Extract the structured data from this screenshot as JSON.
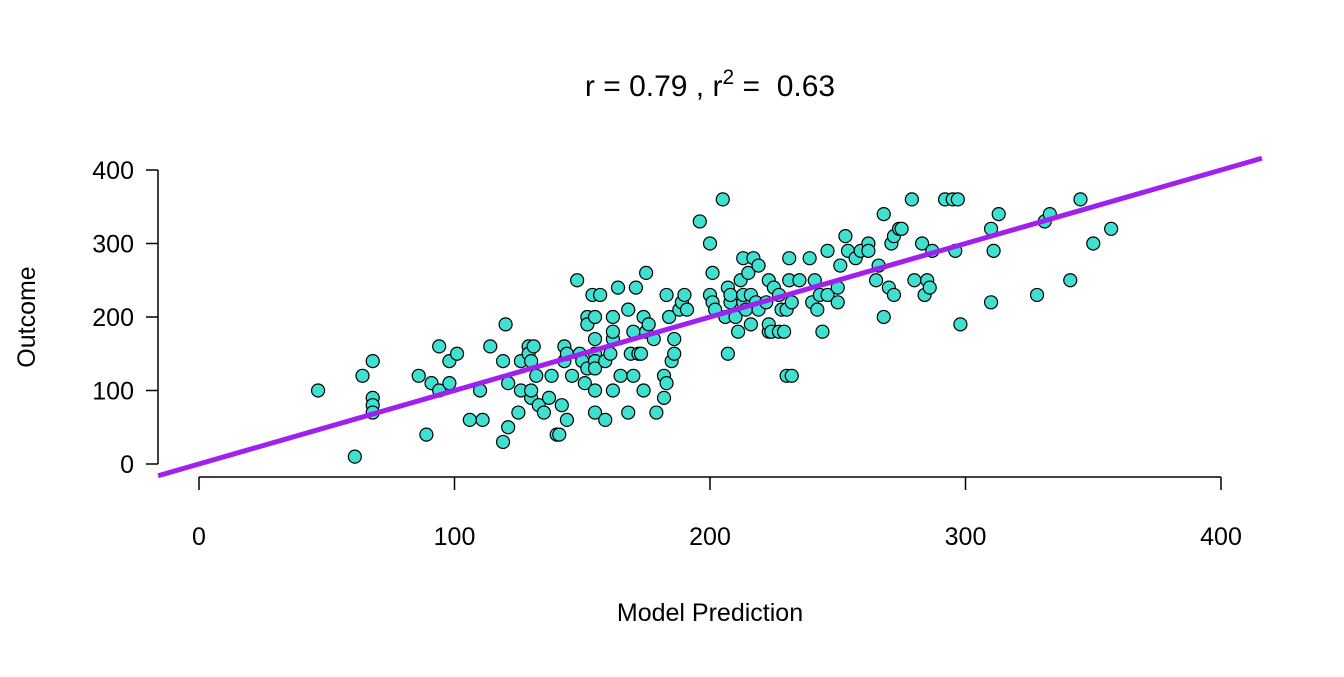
{
  "chart_data": {
    "type": "scatter",
    "title": "r = 0.79 , r",
    "title_sup": "2",
    "title_tail": " =  0.63",
    "xlabel": "Model Prediction",
    "ylabel": "Outcome",
    "xlim": [
      -16,
      416
    ],
    "ylim": [
      -12,
      413
    ],
    "xticks": [
      0,
      100,
      200,
      300,
      400
    ],
    "yticks": [
      0,
      100,
      200,
      300,
      400
    ],
    "xtick_labels": [
      "0",
      "100",
      "200",
      "300",
      "400"
    ],
    "ytick_labels": [
      "0",
      "100",
      "200",
      "300",
      "400"
    ],
    "grid": false,
    "point_color": "#40E0D0",
    "line_color": "#A020F0",
    "fit_line": {
      "slope": 1,
      "intercept": 0
    },
    "points": [
      [
        46.6,
        100
      ],
      [
        61,
        10
      ],
      [
        64,
        120
      ],
      [
        68,
        140
      ],
      [
        68,
        90
      ],
      [
        68,
        80
      ],
      [
        68,
        70
      ],
      [
        86,
        120
      ],
      [
        91,
        110
      ],
      [
        89,
        40
      ],
      [
        94,
        160
      ],
      [
        94,
        100
      ],
      [
        98,
        140
      ],
      [
        98,
        110
      ],
      [
        101,
        150
      ],
      [
        106,
        60
      ],
      [
        110,
        100
      ],
      [
        111,
        60
      ],
      [
        114,
        160
      ],
      [
        119,
        140
      ],
      [
        119,
        30
      ],
      [
        120,
        190
      ],
      [
        121,
        110
      ],
      [
        121,
        50
      ],
      [
        125,
        70
      ],
      [
        126,
        140
      ],
      [
        126,
        100
      ],
      [
        129,
        160
      ],
      [
        129,
        150
      ],
      [
        130,
        140
      ],
      [
        130,
        90
      ],
      [
        130,
        100
      ],
      [
        131,
        160
      ],
      [
        132,
        120
      ],
      [
        133,
        80
      ],
      [
        135,
        70
      ],
      [
        137,
        90
      ],
      [
        138,
        120
      ],
      [
        140,
        40
      ],
      [
        141,
        40
      ],
      [
        142,
        80
      ],
      [
        143,
        160
      ],
      [
        143,
        140
      ],
      [
        144,
        60
      ],
      [
        144,
        150
      ],
      [
        146,
        120
      ],
      [
        148,
        250
      ],
      [
        149,
        150
      ],
      [
        150,
        140
      ],
      [
        151,
        110
      ],
      [
        152,
        130
      ],
      [
        152,
        200
      ],
      [
        152,
        190
      ],
      [
        154,
        230
      ],
      [
        155,
        170
      ],
      [
        155,
        200
      ],
      [
        155,
        150
      ],
      [
        155,
        140
      ],
      [
        155,
        130
      ],
      [
        155,
        100
      ],
      [
        155,
        70
      ],
      [
        157,
        230
      ],
      [
        159,
        140
      ],
      [
        159,
        60
      ],
      [
        161,
        150
      ],
      [
        162,
        170
      ],
      [
        162,
        100
      ],
      [
        162,
        200
      ],
      [
        162,
        180
      ],
      [
        164,
        240
      ],
      [
        165,
        120
      ],
      [
        168,
        70
      ],
      [
        168,
        210
      ],
      [
        170,
        120
      ],
      [
        169,
        150
      ],
      [
        170,
        180
      ],
      [
        171,
        240
      ],
      [
        172,
        150
      ],
      [
        173,
        150
      ],
      [
        174,
        100
      ],
      [
        174,
        200
      ],
      [
        175,
        260
      ],
      [
        175,
        180
      ],
      [
        176,
        190
      ],
      [
        178,
        170
      ],
      [
        179,
        70
      ],
      [
        182,
        120
      ],
      [
        182,
        90
      ],
      [
        183,
        230
      ],
      [
        183,
        110
      ],
      [
        184,
        200
      ],
      [
        185,
        140
      ],
      [
        186,
        170
      ],
      [
        186,
        150
      ],
      [
        188,
        210
      ],
      [
        189,
        220
      ],
      [
        190,
        230
      ],
      [
        191,
        210
      ],
      [
        196,
        330
      ],
      [
        200,
        300
      ],
      [
        201,
        260
      ],
      [
        200,
        230
      ],
      [
        201,
        220
      ],
      [
        202,
        210
      ],
      [
        205,
        360
      ],
      [
        206,
        200
      ],
      [
        207,
        150
      ],
      [
        207,
        240
      ],
      [
        208,
        220
      ],
      [
        208,
        230
      ],
      [
        210,
        200
      ],
      [
        211,
        180
      ],
      [
        212,
        250
      ],
      [
        213,
        220
      ],
      [
        213,
        280
      ],
      [
        213,
        230
      ],
      [
        214,
        210
      ],
      [
        215,
        260
      ],
      [
        216,
        230
      ],
      [
        216,
        190
      ],
      [
        217,
        280
      ],
      [
        218,
        220
      ],
      [
        219,
        270
      ],
      [
        219,
        210
      ],
      [
        222,
        220
      ],
      [
        223,
        180
      ],
      [
        223,
        190
      ],
      [
        223,
        250
      ],
      [
        224,
        180
      ],
      [
        225,
        240
      ],
      [
        227,
        230
      ],
      [
        227,
        180
      ],
      [
        228,
        210
      ],
      [
        229,
        180
      ],
      [
        230,
        120
      ],
      [
        230,
        210
      ],
      [
        231,
        250
      ],
      [
        232,
        220
      ],
      [
        231,
        280
      ],
      [
        232,
        120
      ],
      [
        235,
        250
      ],
      [
        239,
        280
      ],
      [
        240,
        220
      ],
      [
        241,
        250
      ],
      [
        242,
        210
      ],
      [
        243,
        230
      ],
      [
        244,
        180
      ],
      [
        246,
        230
      ],
      [
        246,
        290
      ],
      [
        250,
        220
      ],
      [
        250,
        240
      ],
      [
        251,
        270
      ],
      [
        253,
        310
      ],
      [
        254,
        290
      ],
      [
        257,
        280
      ],
      [
        259,
        290
      ],
      [
        262,
        300
      ],
      [
        262,
        290
      ],
      [
        265,
        250
      ],
      [
        266,
        270
      ],
      [
        268,
        200
      ],
      [
        268,
        340
      ],
      [
        270,
        240
      ],
      [
        271,
        300
      ],
      [
        272,
        310
      ],
      [
        272,
        230
      ],
      [
        274,
        320
      ],
      [
        275,
        320
      ],
      [
        279,
        360
      ],
      [
        280,
        250
      ],
      [
        283,
        300
      ],
      [
        284,
        230
      ],
      [
        285,
        250
      ],
      [
        286,
        240
      ],
      [
        287,
        290
      ],
      [
        292,
        360
      ],
      [
        295,
        360
      ],
      [
        296,
        290
      ],
      [
        297,
        360
      ],
      [
        298,
        190
      ],
      [
        310,
        320
      ],
      [
        310,
        220
      ],
      [
        311,
        290
      ],
      [
        313,
        340
      ],
      [
        328,
        230
      ],
      [
        331,
        330
      ],
      [
        333,
        340
      ],
      [
        341,
        250
      ],
      [
        345,
        360
      ],
      [
        350,
        300
      ],
      [
        357,
        320
      ]
    ]
  }
}
